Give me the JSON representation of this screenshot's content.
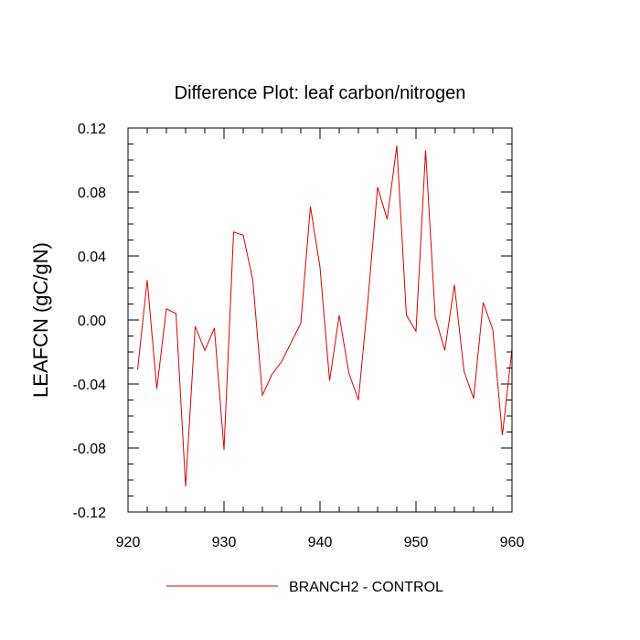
{
  "chart_data": {
    "type": "line",
    "title": "Difference Plot: leaf carbon/nitrogen",
    "xlabel": "",
    "ylabel": "LEAFCN  (gC/gN)",
    "xlim": [
      920,
      960
    ],
    "ylim": [
      -0.12,
      0.12
    ],
    "x_ticks": [
      "920",
      "930",
      "940",
      "950",
      "960"
    ],
    "y_ticks": [
      "-0.12",
      "-0.08",
      "-0.04",
      "0.00",
      "0.04",
      "0.08",
      "0.12"
    ],
    "legend_position": "bottom",
    "series": [
      {
        "name": "BRANCH2 - CONTROL",
        "color": "#e00000",
        "x": [
          921,
          922,
          923,
          924,
          925,
          926,
          927,
          928,
          929,
          930,
          931,
          932,
          933,
          934,
          935,
          936,
          937,
          938,
          939,
          940,
          941,
          942,
          943,
          944,
          945,
          946,
          947,
          948,
          949,
          950,
          951,
          952,
          953,
          954,
          955,
          956,
          957,
          958,
          959,
          960
        ],
        "values": [
          -0.031,
          0.025,
          -0.043,
          0.007,
          0.004,
          -0.104,
          -0.004,
          -0.019,
          -0.005,
          -0.081,
          0.055,
          0.053,
          0.025,
          -0.047,
          -0.034,
          -0.026,
          -0.014,
          -0.002,
          0.071,
          0.033,
          -0.038,
          0.003,
          -0.033,
          -0.05,
          0.013,
          0.083,
          0.063,
          0.109,
          0.003,
          -0.007,
          0.106,
          0.002,
          -0.019,
          0.022,
          -0.032,
          -0.049,
          0.011,
          -0.006,
          -0.072,
          -0.018
        ]
      }
    ]
  }
}
